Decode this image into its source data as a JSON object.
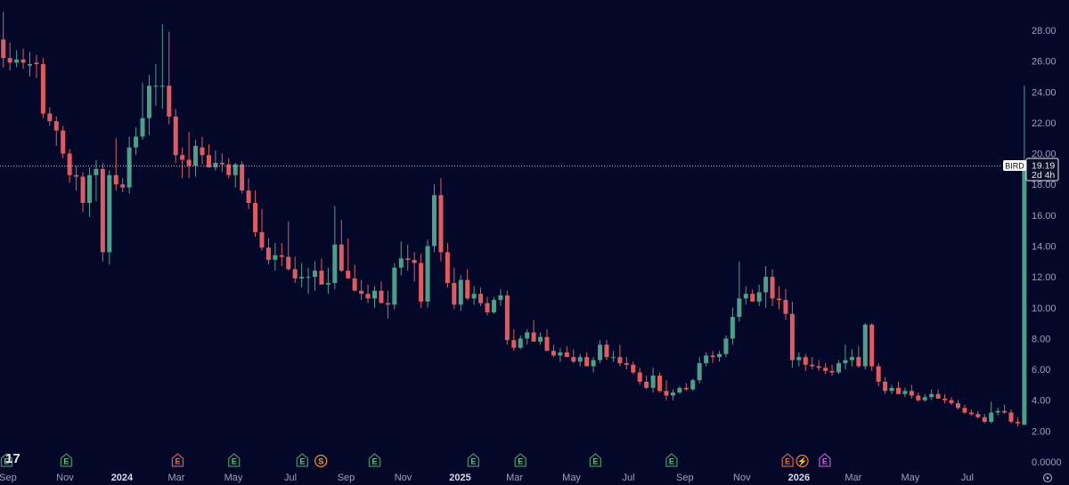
{
  "symbol": "BIRD",
  "last_price": "19.19",
  "countdown": "2d 4h",
  "logo_text": "17",
  "colors": {
    "background": "#040828",
    "up": "#4aa08a",
    "down": "#e05a5f",
    "axis_text": "#9aa0b8",
    "price_line": "#b8bcd0"
  },
  "chart_data": {
    "type": "candlestick",
    "x_axis_labels": [
      {
        "label": "Sep",
        "t": 0.7
      },
      {
        "label": "Nov",
        "t": 9.3
      },
      {
        "label": "2024",
        "t": 17.9,
        "bold": true
      },
      {
        "label": "Mar",
        "t": 26.1
      },
      {
        "label": "May",
        "t": 34.7
      },
      {
        "label": "Jul",
        "t": 43.3
      },
      {
        "label": "Sep",
        "t": 51.7
      },
      {
        "label": "Nov",
        "t": 60.3
      },
      {
        "label": "2025",
        "t": 68.9,
        "bold": true
      },
      {
        "label": "Mar",
        "t": 77.1
      },
      {
        "label": "May",
        "t": 85.7
      },
      {
        "label": "Jul",
        "t": 94.3
      },
      {
        "label": "Sep",
        "t": 102.8
      },
      {
        "label": "Nov",
        "t": 111.4
      },
      {
        "label": "2026",
        "t": 120,
        "bold": true
      },
      {
        "label": "Mar",
        "t": 128.2
      },
      {
        "label": "May",
        "t": 136.8
      },
      {
        "label": "Jul",
        "t": 145.4
      }
    ],
    "y_ticks": [
      "0.0000",
      "2.00",
      "4.00",
      "6.00",
      "8.00",
      "10.00",
      "12.00",
      "14.00",
      "16.00",
      "18.00",
      "20.00",
      "22.00",
      "24.00",
      "26.00",
      "28.00"
    ],
    "ylim": [
      0,
      29.5
    ],
    "x_range": [
      -0.5,
      152
    ],
    "last_price": 19.19,
    "candles": [
      [
        27.4,
        29.2,
        25.6,
        26.2
      ],
      [
        26.2,
        27.2,
        25.4,
        25.9
      ],
      [
        25.9,
        26.7,
        25.6,
        26.1
      ],
      [
        26.1,
        26.8,
        25.5,
        25.9
      ],
      [
        25.7,
        26.6,
        25.0,
        25.8
      ],
      [
        25.9,
        26.4,
        24.9,
        25.8
      ],
      [
        25.8,
        26.2,
        22.3,
        22.6
      ],
      [
        22.6,
        23.0,
        21.8,
        22.1
      ],
      [
        22.1,
        22.4,
        20.5,
        21.5
      ],
      [
        21.5,
        21.8,
        19.7,
        20.0
      ],
      [
        20.0,
        20.3,
        18.1,
        18.6
      ],
      [
        18.6,
        19.2,
        17.6,
        18.5
      ],
      [
        18.5,
        18.8,
        16.2,
        16.8
      ],
      [
        16.8,
        19.1,
        15.9,
        18.6
      ],
      [
        18.6,
        19.6,
        16.9,
        19.0
      ],
      [
        19.0,
        19.4,
        13.0,
        13.6
      ],
      [
        13.6,
        18.9,
        12.8,
        18.6
      ],
      [
        18.6,
        21.0,
        17.6,
        18.0
      ],
      [
        18.0,
        18.4,
        17.5,
        17.8
      ],
      [
        17.8,
        21.1,
        17.4,
        20.4
      ],
      [
        20.4,
        21.7,
        19.9,
        21.1
      ],
      [
        21.1,
        24.6,
        20.9,
        22.3
      ],
      [
        22.3,
        25.1,
        21.2,
        24.4
      ],
      [
        24.4,
        25.8,
        23.1,
        24.4
      ],
      [
        24.4,
        28.4,
        22.9,
        24.4
      ],
      [
        24.4,
        27.9,
        21.9,
        22.4
      ],
      [
        22.4,
        22.9,
        19.4,
        19.9
      ],
      [
        19.9,
        20.4,
        18.4,
        19.6
      ],
      [
        19.6,
        21.4,
        18.4,
        19.2
      ],
      [
        19.2,
        20.9,
        18.5,
        20.5
      ],
      [
        20.4,
        21.1,
        19.3,
        19.9
      ],
      [
        19.9,
        20.6,
        19.1,
        19.1
      ],
      [
        19.1,
        20.2,
        18.9,
        19.4
      ],
      [
        19.4,
        20.0,
        18.8,
        19.3
      ],
      [
        19.3,
        19.7,
        18.4,
        18.6
      ],
      [
        18.6,
        19.4,
        17.8,
        19.3
      ],
      [
        19.3,
        19.5,
        17.4,
        17.6
      ],
      [
        17.6,
        18.4,
        16.4,
        16.8
      ],
      [
        16.8,
        17.6,
        14.6,
        14.9
      ],
      [
        14.9,
        16.4,
        13.7,
        13.9
      ],
      [
        13.9,
        14.5,
        12.8,
        13.1
      ],
      [
        13.1,
        14.2,
        12.4,
        13.4
      ],
      [
        13.4,
        14.2,
        12.7,
        13.3
      ],
      [
        13.3,
        15.6,
        12.4,
        12.5
      ],
      [
        12.5,
        13.3,
        11.6,
        11.9
      ],
      [
        11.9,
        12.9,
        11.3,
        12.0
      ],
      [
        12.0,
        12.6,
        10.9,
        12.0
      ],
      [
        12.0,
        13.0,
        11.1,
        12.4
      ],
      [
        12.4,
        13.2,
        11.5,
        11.5
      ],
      [
        11.5,
        12.6,
        10.9,
        11.6
      ],
      [
        11.6,
        16.6,
        11.2,
        14.1
      ],
      [
        14.1,
        15.7,
        12.3,
        12.4
      ],
      [
        12.4,
        14.5,
        11.9,
        11.9
      ],
      [
        11.9,
        12.8,
        11.2,
        11.1
      ],
      [
        11.1,
        11.8,
        10.5,
        10.9
      ],
      [
        10.9,
        11.5,
        10.3,
        10.6
      ],
      [
        10.6,
        11.4,
        10.0,
        11.1
      ],
      [
        11.1,
        11.7,
        10.3,
        10.3
      ],
      [
        10.3,
        11.1,
        9.3,
        10.2
      ],
      [
        10.2,
        12.9,
        9.9,
        12.6
      ],
      [
        12.6,
        14.3,
        12.1,
        13.2
      ],
      [
        13.2,
        14.1,
        12.4,
        13.1
      ],
      [
        13.1,
        13.6,
        11.7,
        12.9
      ],
      [
        12.9,
        13.5,
        10.0,
        10.4
      ],
      [
        10.4,
        14.4,
        10.0,
        14.0
      ],
      [
        14.0,
        18.0,
        13.6,
        17.3
      ],
      [
        17.3,
        18.4,
        13.0,
        13.6
      ],
      [
        13.6,
        14.2,
        11.3,
        11.6
      ],
      [
        11.6,
        12.6,
        9.9,
        10.2
      ],
      [
        10.2,
        12.1,
        9.8,
        11.8
      ],
      [
        11.8,
        12.5,
        10.5,
        10.6
      ],
      [
        10.6,
        11.4,
        10.2,
        10.9
      ],
      [
        10.9,
        11.3,
        10.1,
        10.3
      ],
      [
        10.3,
        10.7,
        9.5,
        9.7
      ],
      [
        9.7,
        10.7,
        9.6,
        10.5
      ],
      [
        10.5,
        11.2,
        10.1,
        10.8
      ],
      [
        10.8,
        11.1,
        7.6,
        7.9
      ],
      [
        7.9,
        8.6,
        7.2,
        7.4
      ],
      [
        7.4,
        8.2,
        7.3,
        8.0
      ],
      [
        8.0,
        8.6,
        7.6,
        8.4
      ],
      [
        8.4,
        9.2,
        7.9,
        7.8
      ],
      [
        7.8,
        8.4,
        7.6,
        8.1
      ],
      [
        8.1,
        8.6,
        7.4,
        7.2
      ],
      [
        7.2,
        7.6,
        6.8,
        6.9
      ],
      [
        6.9,
        7.4,
        6.5,
        7.1
      ],
      [
        7.1,
        7.5,
        6.9,
        6.8
      ],
      [
        6.8,
        7.3,
        6.4,
        6.5
      ],
      [
        6.5,
        7.0,
        6.2,
        6.8
      ],
      [
        6.8,
        7.1,
        6.3,
        6.2
      ],
      [
        6.2,
        6.8,
        5.8,
        6.6
      ],
      [
        6.6,
        7.9,
        6.4,
        7.6
      ],
      [
        7.6,
        7.9,
        6.6,
        6.8
      ],
      [
        6.8,
        7.2,
        6.5,
        6.8
      ],
      [
        6.8,
        7.6,
        6.2,
        6.4
      ],
      [
        6.4,
        6.8,
        6.0,
        6.3
      ],
      [
        6.3,
        6.5,
        5.7,
        5.8
      ],
      [
        5.8,
        6.1,
        5.0,
        5.2
      ],
      [
        5.2,
        5.6,
        4.7,
        4.8
      ],
      [
        4.8,
        6.1,
        4.5,
        5.6
      ],
      [
        5.6,
        5.8,
        4.5,
        4.6
      ],
      [
        4.6,
        5.3,
        4.0,
        4.3
      ],
      [
        4.3,
        4.7,
        4.0,
        4.5
      ],
      [
        4.5,
        4.9,
        4.4,
        4.8
      ],
      [
        4.8,
        5.1,
        4.6,
        4.7
      ],
      [
        4.7,
        5.4,
        4.6,
        5.3
      ],
      [
        5.3,
        6.8,
        5.1,
        6.4
      ],
      [
        6.4,
        7.1,
        6.2,
        6.9
      ],
      [
        6.9,
        7.2,
        6.4,
        6.8
      ],
      [
        6.8,
        7.2,
        6.5,
        7.0
      ],
      [
        7.0,
        8.2,
        6.8,
        8.0
      ],
      [
        8.0,
        10.0,
        7.6,
        9.4
      ],
      [
        9.4,
        13.0,
        9.1,
        10.6
      ],
      [
        10.6,
        11.4,
        10.2,
        10.9
      ],
      [
        10.9,
        11.2,
        10.4,
        10.4
      ],
      [
        10.4,
        11.5,
        10.1,
        11.0
      ],
      [
        11.0,
        12.7,
        10.0,
        12.0
      ],
      [
        12.0,
        12.5,
        10.1,
        10.6
      ],
      [
        10.6,
        11.4,
        9.9,
        10.5
      ],
      [
        10.5,
        11.2,
        9.2,
        9.6
      ],
      [
        9.6,
        10.4,
        6.1,
        6.6
      ],
      [
        6.6,
        7.1,
        6.2,
        6.8
      ],
      [
        6.8,
        7.0,
        5.9,
        6.3
      ],
      [
        6.3,
        6.8,
        6.0,
        6.2
      ],
      [
        6.2,
        6.6,
        5.9,
        6.1
      ],
      [
        6.1,
        6.4,
        5.7,
        5.9
      ],
      [
        5.9,
        6.3,
        5.6,
        5.8
      ],
      [
        5.8,
        6.6,
        5.7,
        6.4
      ],
      [
        6.4,
        7.6,
        6.0,
        6.6
      ],
      [
        6.6,
        7.3,
        6.2,
        6.8
      ],
      [
        6.8,
        7.5,
        6.1,
        6.2
      ],
      [
        6.2,
        9.0,
        6.0,
        8.9
      ],
      [
        8.9,
        9.0,
        5.9,
        6.2
      ],
      [
        6.2,
        6.4,
        4.9,
        5.2
      ],
      [
        5.2,
        5.5,
        4.4,
        4.6
      ],
      [
        4.6,
        5.0,
        4.4,
        4.8
      ],
      [
        4.8,
        5.2,
        4.5,
        4.4
      ],
      [
        4.4,
        4.8,
        4.2,
        4.6
      ],
      [
        4.6,
        5.0,
        4.1,
        4.3
      ],
      [
        4.3,
        4.5,
        3.9,
        4.0
      ],
      [
        4.0,
        4.4,
        3.9,
        4.2
      ],
      [
        4.2,
        4.7,
        4.0,
        4.4
      ],
      [
        4.4,
        4.7,
        4.1,
        4.1
      ],
      [
        4.1,
        4.4,
        3.8,
        4.0
      ],
      [
        4.0,
        4.2,
        3.7,
        3.8
      ],
      [
        3.8,
        4.0,
        3.4,
        3.5
      ],
      [
        3.5,
        3.7,
        3.1,
        3.2
      ],
      [
        3.2,
        3.4,
        3.0,
        3.1
      ],
      [
        3.1,
        3.3,
        2.8,
        2.9
      ],
      [
        2.9,
        3.1,
        2.5,
        2.6
      ],
      [
        2.6,
        3.9,
        2.5,
        3.2
      ],
      [
        3.2,
        3.5,
        3.0,
        3.3
      ],
      [
        3.3,
        3.7,
        3.1,
        3.2
      ],
      [
        3.2,
        3.4,
        2.5,
        2.6
      ],
      [
        2.6,
        2.9,
        2.3,
        2.5
      ],
      [
        2.4,
        24.4,
        2.4,
        19.19
      ]
    ],
    "events": [
      {
        "t": 0.5,
        "label": "E",
        "kind": "earnings-green"
      },
      {
        "t": 9.5,
        "label": "E",
        "kind": "earnings-green"
      },
      {
        "t": 26.3,
        "label": "E",
        "kind": "earnings-red"
      },
      {
        "t": 34.8,
        "label": "E",
        "kind": "earnings-green"
      },
      {
        "t": 45.1,
        "label": "E",
        "kind": "earnings-green"
      },
      {
        "t": 47.9,
        "label": "S",
        "kind": "split"
      },
      {
        "t": 56.0,
        "label": "E",
        "kind": "earnings-green"
      },
      {
        "t": 70.9,
        "label": "E",
        "kind": "earnings-green"
      },
      {
        "t": 78.0,
        "label": "E",
        "kind": "earnings-green"
      },
      {
        "t": 89.3,
        "label": "E",
        "kind": "earnings-green"
      },
      {
        "t": 100.8,
        "label": "E",
        "kind": "earnings-green"
      },
      {
        "t": 118.3,
        "label": "E",
        "kind": "earnings-red"
      },
      {
        "t": 120.5,
        "label": "⚡",
        "kind": "lightning"
      },
      {
        "t": 123.9,
        "label": "E",
        "kind": "earnings-purple"
      }
    ]
  }
}
